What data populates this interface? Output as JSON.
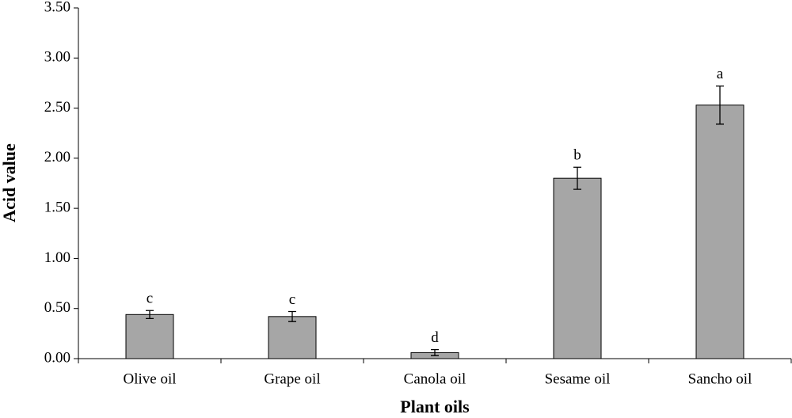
{
  "chart_data": {
    "type": "bar",
    "x_label": "Plant oils",
    "y_label": "Acid value",
    "categories": [
      "Olive oil",
      "Grape oil",
      "Canola oil",
      "Sesame oil",
      "Sancho oil"
    ],
    "values": [
      0.44,
      0.42,
      0.06,
      1.8,
      2.53
    ],
    "errors": [
      0.04,
      0.05,
      0.03,
      0.11,
      0.19
    ],
    "letters": [
      "c",
      "c",
      "d",
      "b",
      "a"
    ],
    "color": "#a6a6a6",
    "ylim": [
      0,
      3.5
    ],
    "yticks": [
      {
        "value": 0,
        "label": "0.00"
      },
      {
        "value": 0.5,
        "label": "0.50"
      },
      {
        "value": 1,
        "label": "1.00"
      },
      {
        "value": 1.5,
        "label": "1.50"
      },
      {
        "value": 2,
        "label": "2.00"
      },
      {
        "value": 2.5,
        "label": "2.50"
      },
      {
        "value": 3,
        "label": "3.00"
      },
      {
        "value": 3.5,
        "label": "3.50"
      }
    ],
    "grid": false
  }
}
